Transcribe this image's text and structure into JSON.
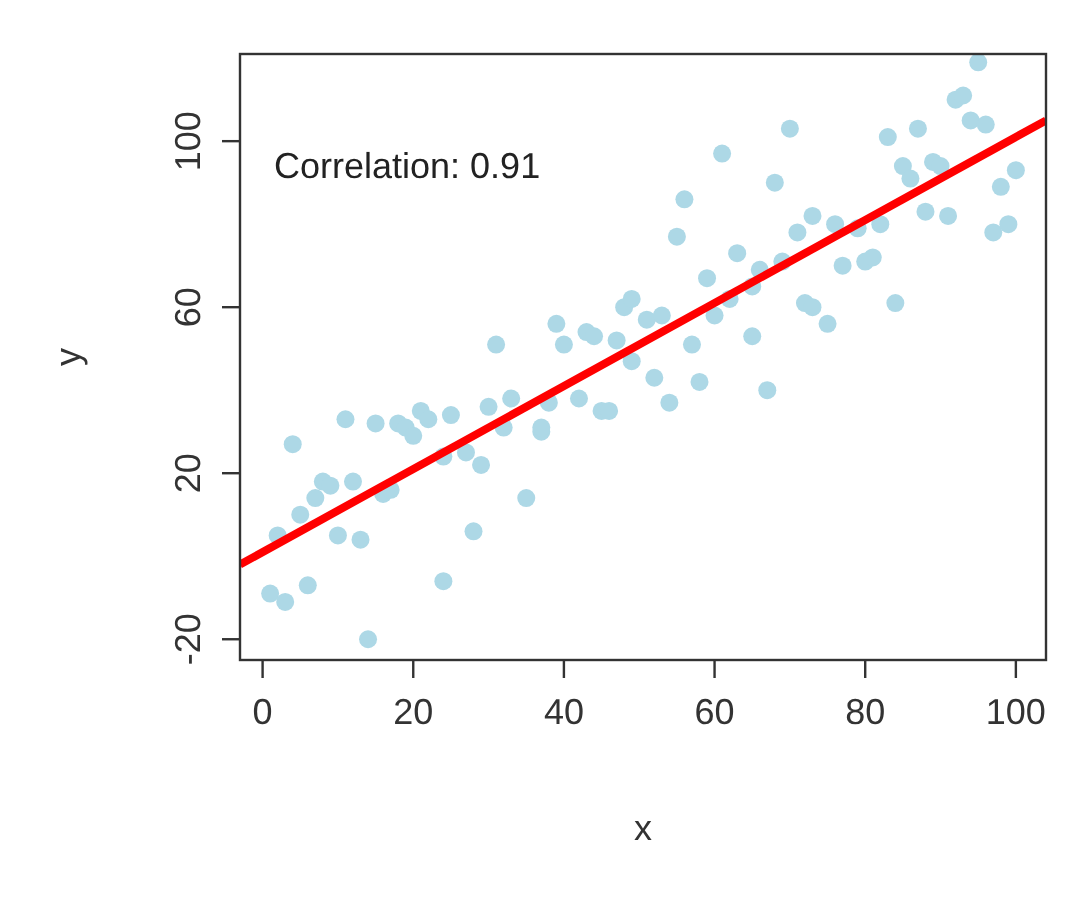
{
  "chart_data": {
    "type": "scatter",
    "xlabel": "x",
    "ylabel": "y",
    "xlim": [
      -3,
      104
    ],
    "ylim": [
      -25,
      121
    ],
    "xticks": [
      0,
      20,
      40,
      60,
      80,
      100
    ],
    "yticks": [
      -20,
      20,
      60,
      100
    ],
    "grid": false,
    "marker": "circle",
    "annotations": [
      "Correlation: 0.91"
    ],
    "series": [
      {
        "color": "#add8e6",
        "x": [
          1,
          3,
          4,
          6,
          5,
          2,
          7,
          8,
          9,
          10,
          11,
          12,
          13,
          14,
          15,
          16,
          17,
          18,
          19,
          20,
          21,
          22,
          24,
          25,
          24,
          27,
          29,
          28,
          30,
          31,
          33,
          32,
          35,
          37,
          37,
          38,
          39,
          40,
          42,
          43,
          44,
          45,
          46,
          47,
          48,
          49,
          49,
          51,
          53,
          52,
          54,
          55,
          56,
          57,
          58,
          59,
          60,
          61,
          62,
          63,
          65,
          65,
          66,
          67,
          68,
          69,
          70,
          71,
          73,
          72,
          73,
          75,
          76,
          77,
          79,
          80,
          81,
          82,
          83,
          84,
          85,
          86,
          87,
          88,
          89,
          90,
          91,
          92,
          93,
          94,
          95,
          96,
          97,
          98,
          99,
          100
        ],
        "values": [
          -9,
          -11,
          27,
          -7,
          10,
          5,
          14,
          18,
          17,
          5,
          33,
          18,
          4,
          -20,
          32,
          15,
          16,
          32,
          31,
          29,
          35,
          33,
          -6,
          34,
          24,
          25,
          22,
          6,
          36,
          51,
          38,
          31,
          14,
          30,
          31,
          37,
          56,
          51,
          38,
          54,
          53,
          35,
          35,
          52,
          60,
          47,
          62,
          57,
          58,
          43,
          37,
          77,
          86,
          51,
          42,
          67,
          58,
          97,
          62,
          73,
          65,
          53,
          69,
          40,
          90,
          71,
          103,
          78,
          82,
          61,
          60,
          56,
          80,
          70,
          79,
          71,
          72,
          80,
          101,
          61,
          94,
          91,
          103,
          83,
          95,
          94,
          82,
          110,
          111,
          105,
          119,
          104,
          78,
          89,
          80,
          93
        ]
      },
      {
        "type": "line",
        "marker": "none",
        "color": "#ff0000",
        "x": [
          -3,
          104
        ],
        "values": [
          -2,
          105
        ]
      }
    ]
  }
}
